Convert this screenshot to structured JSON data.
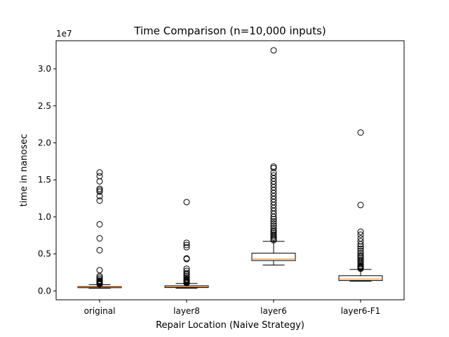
{
  "chart_data": {
    "type": "box",
    "title": "Time Comparison (n=10,000 inputs)",
    "xlabel": "Repair Location (Naive Strategy)",
    "ylabel": "time in nanosec",
    "y_multiplier_label": "1e7",
    "ylim": [
      -0.12,
      3.38
    ],
    "yticks": [
      0.0,
      0.5,
      1.0,
      1.5,
      2.0,
      2.5,
      3.0
    ],
    "ytick_labels": [
      "0.0",
      "0.5",
      "1.0",
      "1.5",
      "2.0",
      "2.5",
      "3.0"
    ],
    "categories": [
      "original",
      "layer8",
      "layer6",
      "layer6-F1"
    ],
    "boxes": [
      {
        "whisker_low": 0.035,
        "q1": 0.043,
        "median": 0.049,
        "q3": 0.058,
        "whisker_high": 0.085,
        "outliers": [
          1.6,
          1.55,
          1.48,
          1.38,
          1.36,
          1.34,
          1.28,
          1.22,
          0.9,
          0.71,
          0.55,
          0.28,
          0.2,
          0.18,
          0.16,
          0.14,
          0.13,
          0.12,
          0.11,
          0.1,
          0.095,
          0.09
        ]
      },
      {
        "whisker_low": 0.035,
        "q1": 0.045,
        "median": 0.055,
        "q3": 0.07,
        "whisker_high": 0.1,
        "outliers": [
          1.2,
          0.65,
          0.62,
          0.59,
          0.44,
          0.43,
          0.3,
          0.27,
          0.24,
          0.22,
          0.2,
          0.18,
          0.16,
          0.15,
          0.14,
          0.13,
          0.12,
          0.115,
          0.11,
          0.105
        ]
      },
      {
        "whisker_low": 0.35,
        "q1": 0.41,
        "median": 0.43,
        "q3": 0.51,
        "whisker_high": 0.67,
        "outliers": [
          3.25,
          1.68,
          1.66,
          1.6,
          1.56,
          1.52,
          1.48,
          1.44,
          1.4,
          1.36,
          1.32,
          1.28,
          1.24,
          1.2,
          1.16,
          1.12,
          1.08,
          1.04,
          1.0,
          0.97,
          0.94,
          0.91,
          0.88,
          0.85,
          0.82,
          0.8,
          0.78,
          0.76,
          0.74,
          0.72,
          0.7,
          0.685
        ]
      },
      {
        "whisker_low": 0.13,
        "q1": 0.14,
        "median": 0.16,
        "q3": 0.205,
        "whisker_high": 0.29,
        "outliers": [
          2.14,
          1.16,
          0.8,
          0.76,
          0.71,
          0.67,
          0.63,
          0.6,
          0.57,
          0.54,
          0.51,
          0.48,
          0.46,
          0.44,
          0.42,
          0.4,
          0.38,
          0.36,
          0.34,
          0.33,
          0.32,
          0.31,
          0.3
        ]
      }
    ],
    "colors": {
      "box": "#000000",
      "median": "#ff7f0e",
      "outlier": "#000000"
    },
    "grid": false,
    "legend": "none"
  }
}
